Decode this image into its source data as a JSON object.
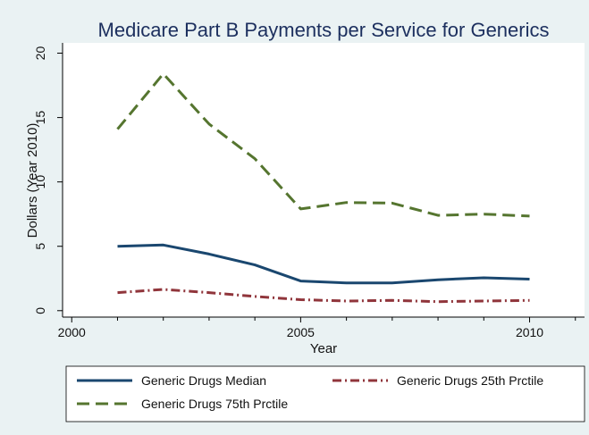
{
  "chart_data": {
    "type": "line",
    "title": "Medicare Part B Payments per Service for Generics",
    "xlabel": "Year",
    "ylabel": "Dollars (Year 2010)",
    "xlim": [
      1999.8,
      2011.2
    ],
    "ylim": [
      -0.5,
      20.8
    ],
    "x_ticks": [
      2000,
      2005,
      2010
    ],
    "y_ticks": [
      0,
      5,
      10,
      15,
      20
    ],
    "x_minor_ticks": [
      2001,
      2002,
      2003,
      2004,
      2006,
      2007,
      2008,
      2009,
      2011
    ],
    "grid": false,
    "legend_position": "bottom",
    "x": [
      2001,
      2002,
      2003,
      2004,
      2005,
      2006,
      2007,
      2008,
      2009,
      2010
    ],
    "series": [
      {
        "name": "Generic Drugs Median",
        "color": "#1a476f",
        "style": "solid",
        "values": [
          5.0,
          5.1,
          4.4,
          3.55,
          2.3,
          2.15,
          2.15,
          2.4,
          2.55,
          2.45
        ]
      },
      {
        "name": "Generic Drugs 25th Prctile",
        "color": "#90353b",
        "style": "dash-dot",
        "values": [
          1.4,
          1.65,
          1.4,
          1.1,
          0.85,
          0.75,
          0.8,
          0.7,
          0.75,
          0.8
        ]
      },
      {
        "name": "Generic Drugs 75th Prctile",
        "color": "#55752f",
        "style": "dashed",
        "values": [
          14.1,
          18.4,
          14.5,
          11.8,
          7.9,
          8.4,
          8.35,
          7.4,
          7.5,
          7.35
        ]
      }
    ]
  }
}
